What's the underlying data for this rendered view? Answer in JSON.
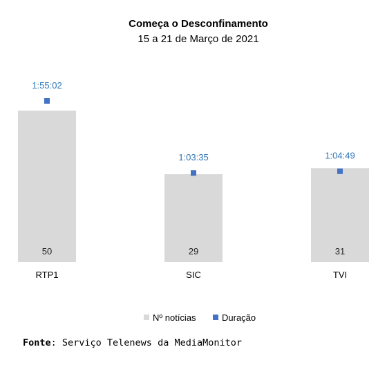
{
  "chart_data": {
    "type": "bar",
    "title": "Começa o Desconfinamento",
    "subtitle": "15 a 21 de Março de 2021",
    "categories": [
      "RTP1",
      "SIC",
      "TVI"
    ],
    "series": [
      {
        "name": "Nº notícias",
        "kind": "bar",
        "values": [
          50,
          29,
          31
        ],
        "color": "#d9d9d9"
      },
      {
        "name": "Duração",
        "kind": "marker",
        "values": [
          "1:55:02",
          "1:03:35",
          "1:04:49"
        ],
        "seconds": [
          6902,
          3815,
          3889
        ],
        "color": "#4472c4",
        "label_color": "#2e75b6"
      }
    ],
    "ylim_count": [
      0,
      50
    ],
    "grid": false,
    "legend_position": "bottom"
  },
  "source": {
    "label": "Fonte",
    "text": ": Serviço Telenews da MediaMonitor"
  }
}
